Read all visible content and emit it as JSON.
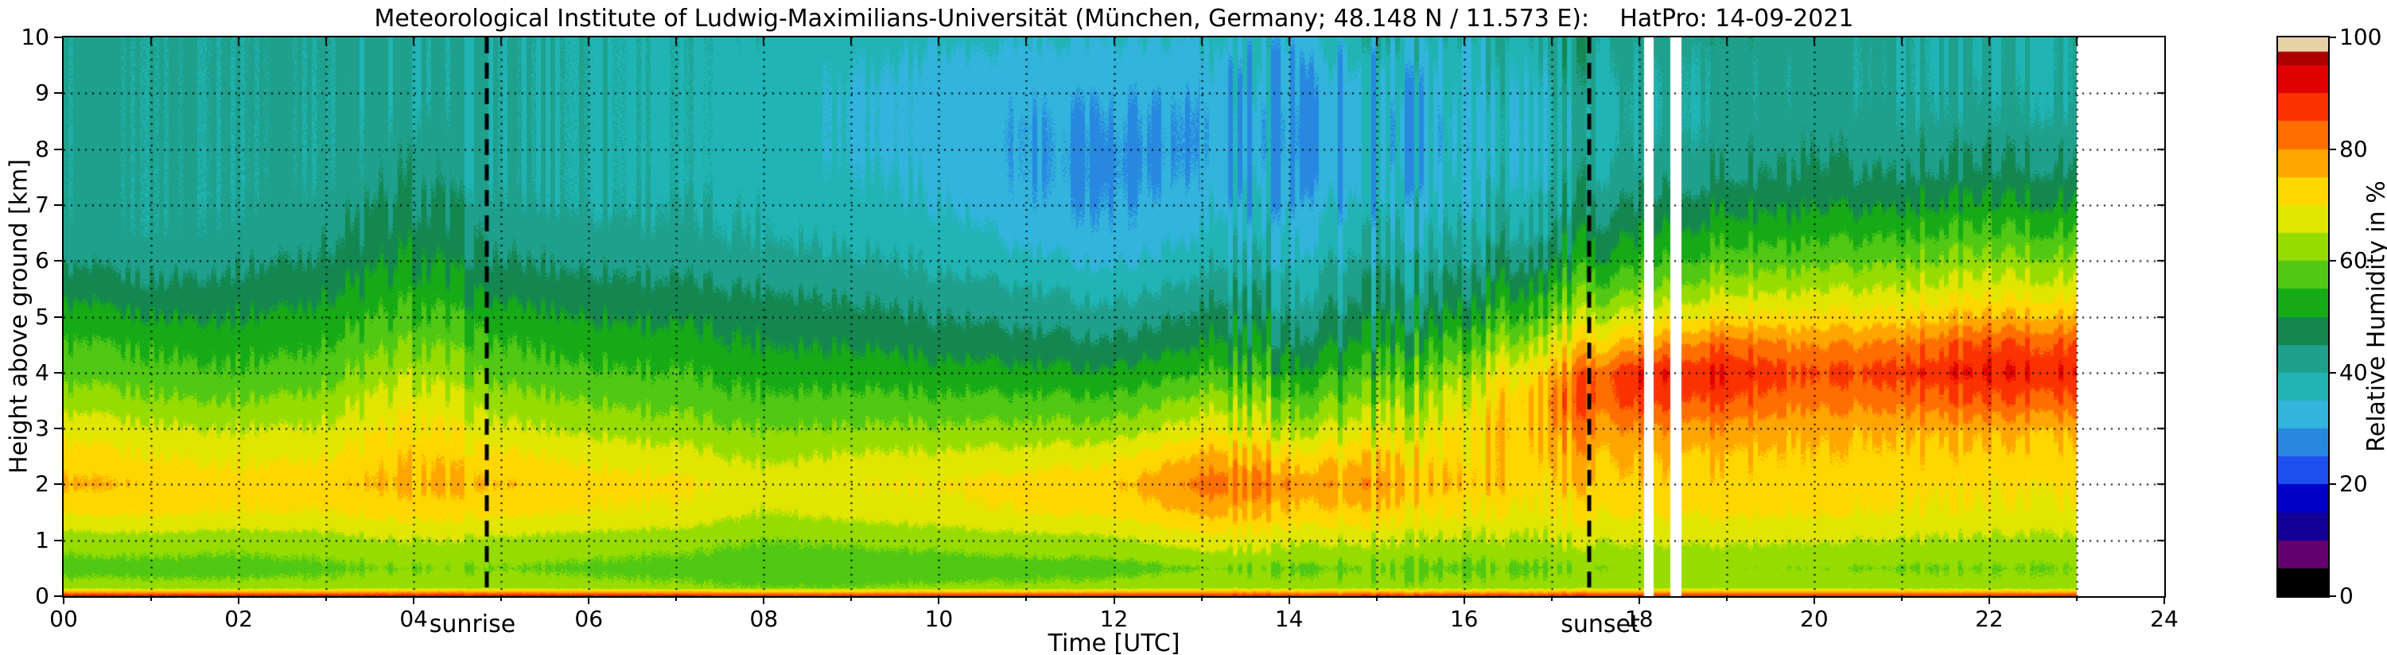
{
  "title": "Meteorological Institute of Ludwig-Maximilians-Universität (München, Germany; 48.148 N / 11.573 E):    HatPro: 14-09-2021",
  "axes": {
    "x_label": "Time [UTC]",
    "y_label": "Height above ground [km]",
    "x_ticks": [
      "00",
      "02",
      "04",
      "06",
      "08",
      "10",
      "12",
      "14",
      "16",
      "18",
      "20",
      "22",
      "24"
    ],
    "x_tick_hours": [
      0,
      2,
      4,
      6,
      8,
      10,
      12,
      14,
      16,
      18,
      20,
      22,
      24
    ],
    "y_ticks": [
      "0",
      "1",
      "2",
      "3",
      "4",
      "5",
      "6",
      "7",
      "8",
      "9",
      "10"
    ],
    "y_tick_values": [
      0,
      1,
      2,
      3,
      4,
      5,
      6,
      7,
      8,
      9,
      10
    ],
    "x_range": [
      0,
      24
    ],
    "y_range": [
      0,
      10
    ],
    "grid": "dotted black, every 1 h and every 1 km"
  },
  "colorbar": {
    "label": "Relative Humidity in %",
    "ticks": [
      "0",
      "20",
      "40",
      "60",
      "80",
      "100"
    ],
    "tick_values": [
      0,
      20,
      40,
      60,
      80,
      100
    ],
    "range": [
      0,
      100
    ],
    "bin_width_percent": 5,
    "bin_colors": [
      "#000000",
      "#64006e",
      "#140096",
      "#0000c8",
      "#1e50f0",
      "#2888e0",
      "#32b4dc",
      "#20b4b4",
      "#1ea08c",
      "#148750",
      "#16aa16",
      "#50c814",
      "#96dc00",
      "#e1e600",
      "#ffd700",
      "#ffa500",
      "#ff6e00",
      "#fa3200",
      "#e10000",
      "#aa0000"
    ],
    "saturation_color": "#e6d2a5"
  },
  "annotations": {
    "sunrise": {
      "label": "sunrise",
      "hour": 4.83
    },
    "sunset": {
      "label": "sunset",
      "hour": 17.43
    }
  },
  "chart_data": {
    "type": "heatmap",
    "value_name": "relative humidity",
    "value_unit": "%",
    "x_name": "time",
    "x_unit": "hours UTC",
    "y_name": "height above ground",
    "y_unit": "km",
    "data_end_hour": 23.0,
    "gaps_hours": [
      [
        18.06,
        18.17
      ],
      [
        18.36,
        18.48
      ]
    ],
    "x_hours": [
      0,
      1,
      2,
      3,
      4,
      5,
      6,
      7,
      8,
      9,
      10,
      11,
      12,
      13,
      14,
      15,
      16,
      17,
      18,
      19,
      20,
      21,
      22,
      23
    ],
    "heights_km": [
      0,
      0.15,
      0.5,
      1,
      1.5,
      2,
      2.5,
      3,
      3.5,
      4,
      4.5,
      5,
      5.5,
      6,
      6.5,
      7,
      7.5,
      8,
      8.5,
      9,
      9.5,
      10
    ],
    "values_rh_percent": [
      [
        92,
        92,
        92,
        92,
        92,
        92,
        92,
        92,
        90,
        90,
        90,
        90,
        90,
        90,
        90,
        90,
        90,
        90,
        90,
        90,
        90,
        90,
        90,
        90
      ],
      [
        62,
        62,
        62,
        62,
        63,
        63,
        62,
        61,
        60,
        60,
        61,
        61,
        62,
        64,
        63,
        62,
        62,
        63,
        64,
        64,
        63,
        63,
        62,
        62
      ],
      [
        58,
        58,
        58,
        59,
        60,
        60,
        59,
        58,
        57,
        57,
        57,
        58,
        58,
        60,
        60,
        59,
        59,
        60,
        61,
        61,
        60,
        60,
        60,
        60
      ],
      [
        62,
        63,
        62,
        63,
        65,
        64,
        63,
        62,
        60,
        61,
        62,
        63,
        64,
        68,
        67,
        65,
        64,
        65,
        66,
        66,
        65,
        65,
        64,
        64
      ],
      [
        70,
        71,
        70,
        70,
        72,
        71,
        70,
        69,
        65,
        67,
        68,
        70,
        71,
        76,
        75,
        72,
        70,
        70,
        71,
        71,
        70,
        70,
        69,
        69
      ],
      [
        76,
        74,
        72,
        73,
        76,
        75,
        72,
        71,
        68,
        70,
        70,
        72,
        74,
        82,
        81,
        77,
        74,
        73,
        74,
        73,
        72,
        72,
        71,
        71
      ],
      [
        72,
        70,
        69,
        70,
        74,
        71,
        69,
        67,
        64,
        66,
        66,
        67,
        69,
        76,
        74,
        72,
        72,
        75,
        76,
        75,
        73,
        74,
        73,
        73
      ],
      [
        68,
        66,
        65,
        66,
        71,
        66,
        64,
        62,
        60,
        61,
        61,
        61,
        62,
        68,
        66,
        65,
        70,
        78,
        80,
        79,
        75,
        77,
        77,
        76
      ],
      [
        62,
        61,
        60,
        62,
        68,
        62,
        60,
        58,
        56,
        57,
        56,
        56,
        56,
        62,
        60,
        59,
        67,
        80,
        87,
        86,
        80,
        83,
        85,
        84
      ],
      [
        58,
        57,
        56,
        58,
        64,
        58,
        56,
        55,
        53,
        53,
        52,
        51,
        51,
        55,
        54,
        54,
        62,
        76,
        90,
        90,
        84,
        88,
        90,
        89
      ],
      [
        55,
        54,
        53,
        55,
        60,
        55,
        53,
        52,
        50,
        50,
        48,
        47,
        46,
        50,
        49,
        49,
        56,
        68,
        78,
        84,
        78,
        82,
        86,
        85
      ],
      [
        52,
        50,
        50,
        52,
        56,
        52,
        50,
        49,
        48,
        47,
        45,
        43,
        42,
        46,
        45,
        45,
        50,
        60,
        68,
        72,
        70,
        73,
        76,
        75
      ],
      [
        48,
        46,
        47,
        49,
        53,
        48,
        47,
        46,
        45,
        44,
        42,
        40,
        38,
        42,
        42,
        42,
        46,
        54,
        60,
        64,
        63,
        66,
        68,
        67
      ],
      [
        44,
        43,
        44,
        46,
        50,
        45,
        44,
        43,
        42,
        41,
        39,
        36,
        34,
        38,
        39,
        39,
        42,
        48,
        54,
        58,
        57,
        60,
        62,
        61
      ],
      [
        42,
        41,
        42,
        44,
        48,
        43,
        42,
        41,
        40,
        39,
        37,
        33,
        31,
        35,
        36,
        36,
        39,
        44,
        50,
        53,
        52,
        55,
        56,
        55
      ],
      [
        41,
        41,
        41,
        42,
        46,
        41,
        40,
        40,
        39,
        37,
        35,
        31,
        30,
        33,
        34,
        34,
        37,
        41,
        46,
        49,
        48,
        50,
        51,
        50
      ],
      [
        41,
        41,
        41,
        41,
        44,
        40,
        40,
        39,
        38,
        36,
        34,
        30,
        29,
        31,
        32,
        32,
        35,
        39,
        43,
        45,
        45,
        46,
        47,
        46
      ],
      [
        41,
        41,
        41,
        41,
        43,
        40,
        40,
        39,
        38,
        35,
        33,
        30,
        29,
        30,
        31,
        31,
        34,
        38,
        41,
        43,
        43,
        43,
        44,
        43
      ],
      [
        41,
        41,
        41,
        41,
        42,
        40,
        40,
        39,
        38,
        35,
        33,
        30,
        30,
        30,
        31,
        31,
        34,
        38,
        40,
        42,
        42,
        42,
        42,
        41
      ],
      [
        41,
        41,
        41,
        41,
        41,
        40,
        40,
        39,
        38,
        35,
        33,
        31,
        31,
        31,
        32,
        32,
        35,
        39,
        40,
        42,
        41,
        41,
        41,
        40
      ],
      [
        41,
        41,
        41,
        41,
        41,
        40,
        40,
        39,
        38,
        36,
        34,
        33,
        33,
        33,
        33,
        34,
        36,
        40,
        41,
        42,
        41,
        41,
        40,
        40
      ],
      [
        41,
        41,
        41,
        41,
        41,
        40,
        40,
        39,
        39,
        37,
        36,
        35,
        35,
        35,
        35,
        36,
        38,
        41,
        42,
        43,
        42,
        41,
        40,
        40
      ]
    ]
  }
}
